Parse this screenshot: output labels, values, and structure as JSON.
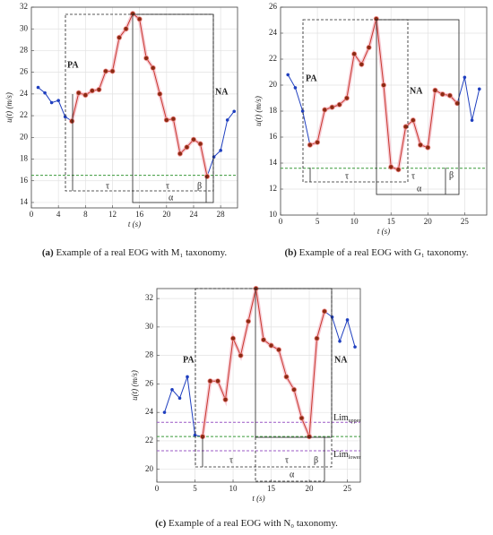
{
  "chart_data": [
    {
      "type": "line",
      "x_label": "t (s)",
      "y_label": "u(t) (m/s)",
      "caption": {
        "label": "(a)",
        "text": "Example of a real EOG with M₁ taxonomy."
      },
      "x": [
        1,
        2,
        3,
        4,
        5,
        6,
        7,
        8,
        9,
        10,
        11,
        12,
        13,
        14,
        15,
        16,
        17,
        18,
        19,
        20,
        21,
        22,
        23,
        24,
        25,
        26,
        27,
        28,
        29,
        30
      ],
      "series": [
        {
          "color": "#1f3fbf",
          "values": [
            24.6,
            24.1,
            23.2,
            23.4,
            21.9,
            21.5,
            null,
            null,
            null,
            null,
            null,
            null,
            null,
            null,
            null,
            null,
            null,
            null,
            null,
            null,
            null,
            null,
            null,
            null,
            null,
            16.4,
            18.2,
            18.8,
            21.6,
            22.4
          ]
        },
        {
          "color": "#c8372d",
          "values": [
            null,
            null,
            null,
            null,
            null,
            21.5,
            24.1,
            23.9,
            24.3,
            24.4,
            26.1,
            26.1,
            29.2,
            30.0,
            31.4,
            30.9,
            27.3,
            26.4,
            24.0,
            21.6,
            21.7,
            18.5,
            19.1,
            19.8,
            19.4,
            16.4,
            null,
            null,
            null,
            null
          ]
        }
      ],
      "hlines": [
        {
          "y": 16.5,
          "color": "#3a9a3a"
        }
      ],
      "annotations": [
        {
          "text": "PA"
        },
        {
          "text": "NA"
        },
        {
          "text": "τ"
        },
        {
          "text": "τ"
        },
        {
          "text": "β"
        },
        {
          "text": "α"
        }
      ],
      "xlim": [
        0,
        30.5
      ],
      "xticks": [
        0,
        4,
        8,
        12,
        16,
        20,
        24,
        28
      ],
      "ylim": [
        13.5,
        32
      ],
      "yticks": [
        14,
        16,
        18,
        20,
        22,
        24,
        26,
        28,
        30,
        32
      ],
      "grid": true
    },
    {
      "type": "line",
      "x_label": "t (s)",
      "y_label": "u(t) (m/s)",
      "caption": {
        "label": "(b)",
        "text": "Example of a real EOG with G₁ taxonomy."
      },
      "x": [
        1,
        2,
        3,
        4,
        5,
        6,
        7,
        8,
        9,
        10,
        11,
        12,
        13,
        14,
        15,
        16,
        17,
        18,
        19,
        20,
        21,
        22,
        23,
        24,
        25,
        26,
        27
      ],
      "series": [
        {
          "color": "#1f3fbf",
          "values": [
            20.8,
            19.8,
            18.0,
            15.4,
            null,
            null,
            null,
            null,
            null,
            null,
            null,
            null,
            null,
            null,
            null,
            null,
            null,
            null,
            null,
            null,
            null,
            null,
            null,
            18.6,
            20.6,
            17.3,
            19.7
          ]
        },
        {
          "color": "#c8372d",
          "values": [
            null,
            null,
            null,
            15.4,
            15.6,
            18.1,
            18.3,
            18.5,
            19.0,
            22.4,
            21.6,
            22.9,
            25.1,
            20.0,
            13.7,
            13.5,
            16.8,
            17.3,
            15.4,
            15.2,
            19.6,
            19.3,
            19.2,
            18.6,
            null,
            null,
            null
          ]
        }
      ],
      "hlines": [
        {
          "y": 13.6,
          "color": "#3a9a3a"
        }
      ],
      "annotations": [
        {
          "text": "PA"
        },
        {
          "text": "NA"
        },
        {
          "text": "τ"
        },
        {
          "text": "τ"
        },
        {
          "text": "β"
        },
        {
          "text": "α"
        }
      ],
      "xlim": [
        0,
        28
      ],
      "xticks": [
        0,
        5,
        10,
        15,
        20,
        25
      ],
      "ylim": [
        10,
        26
      ],
      "yticks": [
        10,
        12,
        14,
        16,
        18,
        20,
        22,
        24,
        26
      ],
      "grid": true
    },
    {
      "type": "line",
      "x_label": "t (s)",
      "y_label": "u(t) (m/s)",
      "caption": {
        "label": "(c)",
        "text": "Example of a real EOG with N₀ taxonomy."
      },
      "x": [
        1,
        2,
        3,
        4,
        5,
        6,
        7,
        8,
        9,
        10,
        11,
        12,
        13,
        14,
        15,
        16,
        17,
        18,
        19,
        20,
        21,
        22,
        23,
        24,
        25,
        26
      ],
      "series": [
        {
          "color": "#1f3fbf",
          "values": [
            24.0,
            25.6,
            25.0,
            26.5,
            22.4,
            22.3,
            null,
            null,
            null,
            null,
            null,
            null,
            null,
            null,
            null,
            null,
            null,
            null,
            null,
            null,
            null,
            31.1,
            30.7,
            29.0,
            30.5,
            28.6
          ]
        },
        {
          "color": "#c8372d",
          "values": [
            null,
            null,
            null,
            null,
            null,
            22.3,
            26.2,
            26.2,
            24.9,
            29.2,
            28.0,
            30.4,
            32.7,
            29.1,
            28.7,
            28.4,
            26.5,
            25.6,
            23.6,
            22.3,
            29.2,
            31.1,
            null,
            null,
            null,
            null
          ]
        }
      ],
      "hlines": [
        {
          "y": 22.3,
          "color": "#3a9a3a"
        },
        {
          "y": 23.3,
          "color": "#9b59c6"
        },
        {
          "y": 21.3,
          "color": "#9b59c6"
        }
      ],
      "annotations": [
        {
          "text": "PA"
        },
        {
          "text": "NA"
        },
        {
          "text": "τ"
        },
        {
          "text": "τ"
        },
        {
          "text": "β"
        },
        {
          "text": "α"
        }
      ],
      "limits": [
        {
          "text": "Lim",
          "sub": "upper"
        },
        {
          "text": "Lim",
          "sub": "lower"
        }
      ],
      "xlim": [
        0,
        26.7
      ],
      "xticks": [
        0,
        5,
        10,
        15,
        20,
        25
      ],
      "ylim": [
        19.1,
        32.7
      ],
      "yticks": [
        20,
        22,
        24,
        26,
        28,
        30,
        32
      ],
      "grid": true
    }
  ]
}
